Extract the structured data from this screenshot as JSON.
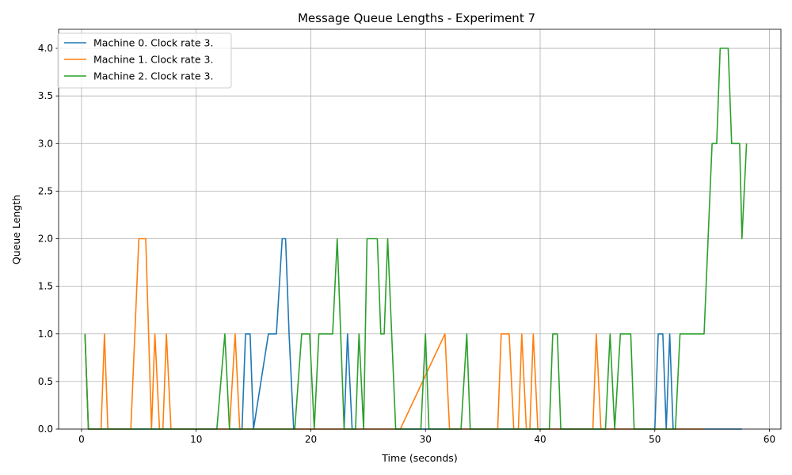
{
  "chart_data": {
    "type": "line",
    "title": "Message Queue Lengths - Experiment 7",
    "xlabel": "Time (seconds)",
    "ylabel": "Queue Length",
    "xlim": [
      -2,
      61
    ],
    "ylim": [
      0,
      4.2
    ],
    "xticks": [
      0,
      10,
      20,
      30,
      40,
      50,
      60
    ],
    "yticks": [
      0.0,
      0.5,
      1.0,
      1.5,
      2.0,
      2.5,
      3.0,
      3.5,
      4.0
    ],
    "grid": true,
    "legend_position": "top-left",
    "series": [
      {
        "name": "Machine 0. Clock rate 3.",
        "color": "#1f77b4",
        "x": [
          0.3,
          0.6,
          14.0,
          14.3,
          14.7,
          15.0,
          16.3,
          16.6,
          17.0,
          17.5,
          17.8,
          18.1,
          18.5,
          22.9,
          23.2,
          23.6,
          50.0,
          50.3,
          50.7,
          51.0,
          51.3,
          51.6,
          57.6
        ],
        "y": [
          1,
          0,
          0,
          1,
          1,
          0,
          1,
          1,
          1,
          2,
          2,
          1,
          0,
          0,
          1,
          0,
          0,
          1,
          1,
          0,
          1,
          0,
          0
        ]
      },
      {
        "name": "Machine 1. Clock rate 3.",
        "color": "#ff7f0e",
        "x": [
          0.3,
          0.6,
          1.7,
          2.0,
          2.3,
          4.3,
          5.0,
          5.3,
          5.6,
          6.1,
          6.4,
          6.8,
          7.1,
          7.4,
          7.8,
          12.9,
          13.4,
          13.8,
          27.8,
          31.7,
          32.1,
          36.3,
          36.6,
          37.3,
          37.7,
          38.1,
          38.4,
          38.8,
          39.1,
          39.4,
          39.8,
          44.6,
          44.9,
          45.3,
          54.3
        ],
        "y": [
          1,
          0,
          0,
          1,
          0,
          0,
          2,
          2,
          2,
          0,
          1,
          0,
          0,
          1,
          0,
          0,
          1,
          0,
          0,
          1,
          0,
          0,
          1,
          1,
          0,
          0,
          1,
          0,
          0,
          1,
          0,
          0,
          1,
          0,
          0
        ]
      },
      {
        "name": "Machine 2. Clock rate 3.",
        "color": "#2ca02c",
        "x": [
          0.3,
          0.6,
          11.8,
          12.5,
          12.9,
          18.6,
          19.2,
          19.9,
          20.3,
          20.7,
          21.0,
          21.9,
          22.3,
          22.9,
          23.9,
          24.2,
          24.6,
          24.9,
          25.2,
          25.8,
          26.1,
          26.4,
          26.7,
          27.4,
          29.6,
          30.0,
          30.3,
          33.1,
          33.6,
          33.9,
          40.8,
          41.1,
          41.5,
          41.8,
          45.7,
          46.1,
          46.5,
          47.0,
          47.3,
          47.6,
          47.9,
          48.2,
          51.8,
          52.2,
          54.3,
          55.0,
          55.4,
          55.7,
          56.4,
          56.7,
          57.4,
          57.6,
          58.0
        ],
        "y": [
          1,
          0,
          0,
          1,
          0,
          0,
          1,
          1,
          0,
          1,
          1,
          1,
          2,
          0,
          0,
          1,
          0,
          2,
          2,
          2,
          1,
          1,
          2,
          0,
          0,
          1,
          0,
          0,
          1,
          0,
          0,
          1,
          1,
          0,
          0,
          1,
          0,
          1,
          1,
          1,
          1,
          0,
          0,
          1,
          1,
          3,
          3,
          4,
          4,
          3,
          3,
          2,
          3
        ]
      }
    ]
  }
}
